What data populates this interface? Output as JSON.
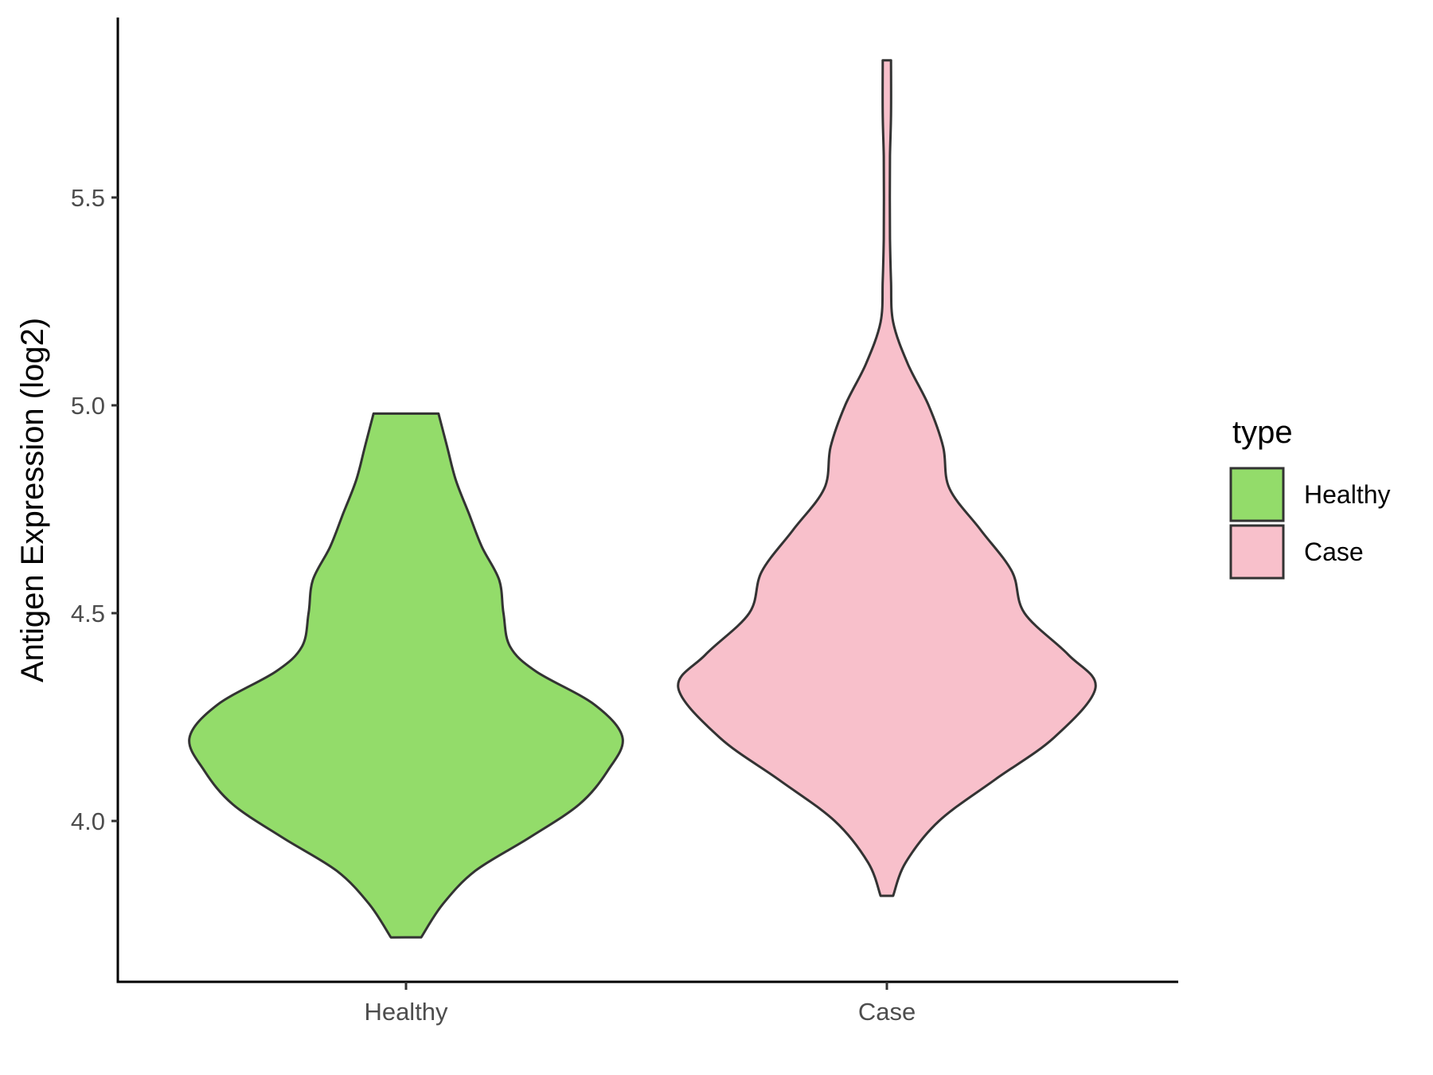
{
  "chart_data": {
    "type": "violin",
    "ylabel": "Antigen Expression (log2)",
    "xlabel": "",
    "categories": [
      "Healthy",
      "Case"
    ],
    "y_ticks": [
      {
        "value": 4.0,
        "label": "4.0"
      },
      {
        "value": 4.5,
        "label": "4.5"
      },
      {
        "value": 5.0,
        "label": "5.0"
      },
      {
        "value": 5.5,
        "label": "5.5"
      }
    ],
    "ylim": [
      3.62,
      5.93
    ],
    "grid": false,
    "legend": {
      "title": "type",
      "position": "right",
      "entries": [
        {
          "label": "Healthy",
          "color": "#93dc6a"
        },
        {
          "label": "Case",
          "color": "#f8c0cb"
        }
      ]
    },
    "series": [
      {
        "category": "Healthy",
        "color": "#93dc6a",
        "min": 3.72,
        "max": 4.98,
        "density_width": [
          [
            3.72,
            0.07
          ],
          [
            3.8,
            0.17
          ],
          [
            3.88,
            0.32
          ],
          [
            3.96,
            0.57
          ],
          [
            4.04,
            0.8
          ],
          [
            4.12,
            0.93
          ],
          [
            4.2,
            1.0
          ],
          [
            4.28,
            0.87
          ],
          [
            4.36,
            0.6
          ],
          [
            4.42,
            0.48
          ],
          [
            4.5,
            0.45
          ],
          [
            4.58,
            0.43
          ],
          [
            4.66,
            0.35
          ],
          [
            4.74,
            0.29
          ],
          [
            4.82,
            0.23
          ],
          [
            4.9,
            0.19
          ],
          [
            4.98,
            0.15
          ]
        ]
      },
      {
        "category": "Case",
        "color": "#f8c0cb",
        "min": 3.82,
        "max": 5.83,
        "density_width": [
          [
            3.82,
            0.03
          ],
          [
            3.9,
            0.09
          ],
          [
            4.0,
            0.25
          ],
          [
            4.1,
            0.52
          ],
          [
            4.2,
            0.8
          ],
          [
            4.32,
            1.0
          ],
          [
            4.4,
            0.87
          ],
          [
            4.5,
            0.66
          ],
          [
            4.6,
            0.6
          ],
          [
            4.7,
            0.45
          ],
          [
            4.8,
            0.3
          ],
          [
            4.9,
            0.27
          ],
          [
            5.0,
            0.2
          ],
          [
            5.1,
            0.1
          ],
          [
            5.2,
            0.03
          ],
          [
            5.3,
            0.02
          ],
          [
            5.4,
            0.015
          ],
          [
            5.5,
            0.014
          ],
          [
            5.6,
            0.015
          ],
          [
            5.7,
            0.02
          ],
          [
            5.83,
            0.02
          ]
        ]
      }
    ]
  }
}
